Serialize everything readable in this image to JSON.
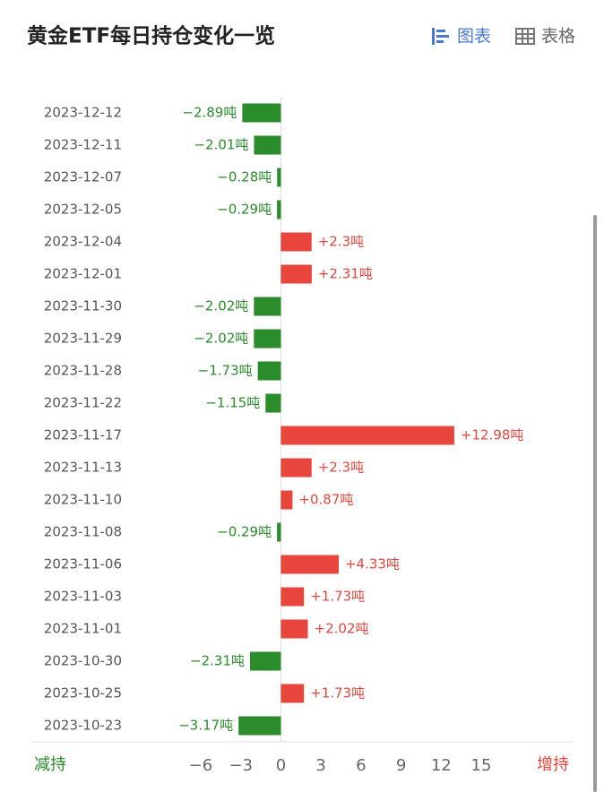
{
  "tabs": [
    "图表",
    "表格"
  ],
  "chart_data": {
    "type": "barh",
    "title": "黄金ETF每日持仓变化一览",
    "categories": [
      "2023-12-12",
      "2023-12-11",
      "2023-12-07",
      "2023-12-05",
      "2023-12-04",
      "2023-12-01",
      "2023-11-30",
      "2023-11-29",
      "2023-11-28",
      "2023-11-22",
      "2023-11-17",
      "2023-11-13",
      "2023-11-10",
      "2023-11-08",
      "2023-11-06",
      "2023-11-03",
      "2023-11-01",
      "2023-10-30",
      "2023-10-25",
      "2023-10-23"
    ],
    "values": [
      -2.89,
      -2.01,
      -0.28,
      -0.29,
      2.3,
      2.31,
      -2.02,
      -2.02,
      -1.73,
      -1.15,
      12.98,
      2.3,
      0.87,
      -0.29,
      4.33,
      1.73,
      2.02,
      -2.31,
      1.73,
      -3.17
    ],
    "value_labels": [
      "−2.89吨",
      "−2.01吨",
      "−0.28吨",
      "−0.29吨",
      "+2.3吨",
      "+2.31吨",
      "−2.02吨",
      "−2.02吨",
      "−1.73吨",
      "−1.15吨",
      "+12.98吨",
      "+2.3吨",
      "+0.87吨",
      "−0.29吨",
      "+4.33吨",
      "+1.73吨",
      "+2.02吨",
      "−2.31吨",
      "+1.73吨",
      "−3.17吨"
    ],
    "positive_color": "#e8453c",
    "negative_color": "#2a8c2a",
    "xlim": [
      -6,
      15
    ],
    "xticks": [
      {
        "value": -6,
        "label": "−6"
      },
      {
        "value": -3,
        "label": "−3"
      },
      0,
      3,
      6,
      9,
      12,
      15
    ],
    "decrease_label": "减持",
    "increase_label": "增持"
  }
}
